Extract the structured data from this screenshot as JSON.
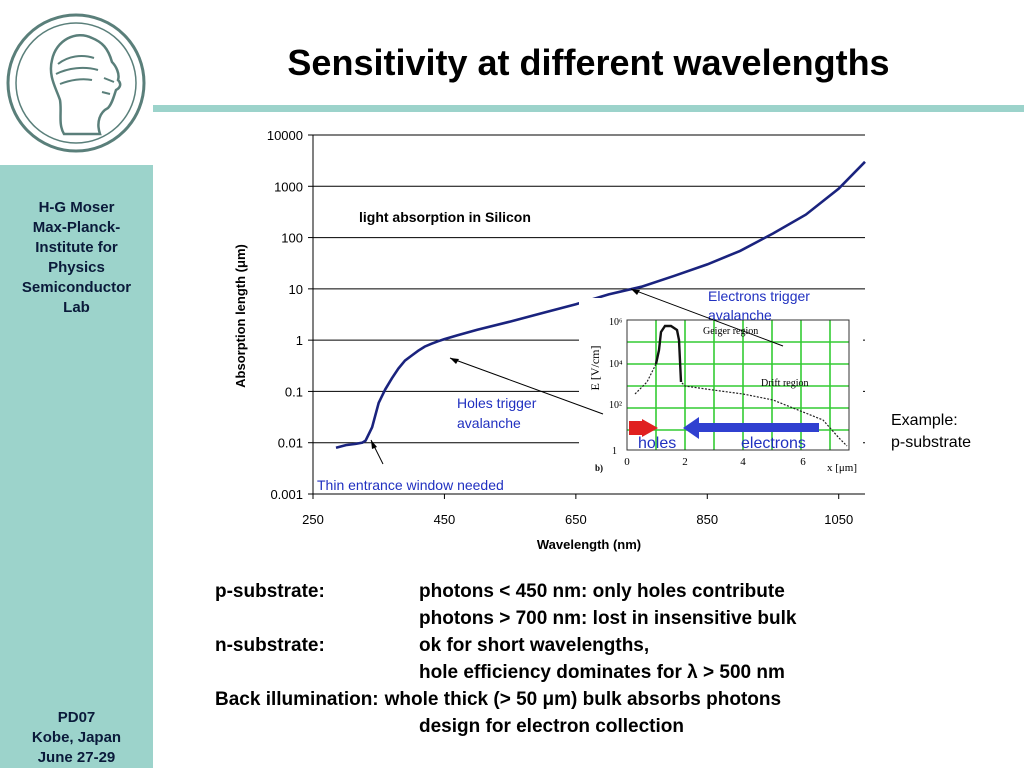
{
  "slide": {
    "title": "Sensitivity at different wavelengths",
    "sidebar": {
      "author_lines": [
        "H-G Moser",
        "Max-Planck-",
        "Institute for",
        "Physics",
        "Semiconductor",
        "Lab"
      ],
      "event_lines": [
        "PD07",
        "Kobe, Japan",
        "June 27-29"
      ]
    },
    "bullets": [
      {
        "label": "p-substrate:",
        "text": "photons < 450 nm: only holes contribute"
      },
      {
        "label": "",
        "text": "photons > 700 nm: lost in insensitive bulk"
      },
      {
        "label": "n-substrate:",
        "text": "ok for short wavelengths,"
      },
      {
        "label": "",
        "text": "hole efficiency dominates for λ > 500 nm"
      },
      {
        "label": "Back illumination:",
        "text": "whole thick (> 50 μm) bulk absorbs photons",
        "wide": true
      },
      {
        "label": "",
        "text": "design for electron collection"
      }
    ]
  },
  "chart_data": {
    "type": "line",
    "title": "light absorption in Silicon",
    "xlabel": "Wavelength (nm)",
    "ylabel": "Absorption length (μm)",
    "xlim": [
      250,
      1090
    ],
    "ylim": [
      0.001,
      10000
    ],
    "yscale": "log",
    "grid": "horizontal",
    "x_ticks": [
      250,
      450,
      650,
      850,
      1050
    ],
    "y_ticks": [
      0.001,
      0.01,
      0.1,
      1,
      10,
      100,
      1000,
      10000
    ],
    "y_tick_labels": [
      "0.001",
      "0.01",
      "0.1",
      "1",
      "10",
      "100",
      "1000",
      "10000"
    ],
    "line_color": "#1a237e",
    "series": [
      {
        "x": [
          285,
          300,
          315,
          325,
          330,
          340,
          350,
          360,
          370,
          380,
          390,
          400,
          410,
          420,
          430,
          440,
          450,
          470,
          500,
          550,
          600,
          650,
          700,
          750,
          800,
          850,
          900,
          950,
          1000,
          1050,
          1090
        ],
        "y": [
          0.008,
          0.009,
          0.0095,
          0.01,
          0.011,
          0.02,
          0.06,
          0.11,
          0.18,
          0.28,
          0.4,
          0.5,
          0.62,
          0.75,
          0.85,
          0.95,
          1.05,
          1.25,
          1.6,
          2.3,
          3.4,
          5,
          7.8,
          11,
          18,
          30,
          55,
          120,
          280,
          900,
          3000
        ]
      }
    ],
    "annotations": {
      "holes": "Holes trigger avalanche",
      "electrons": "Electrons trigger avalanche",
      "window": "Thin entrance window needed",
      "example": [
        "Example:",
        "p-substrate"
      ]
    },
    "inset": {
      "y_axis_label": "E [V/cm]",
      "y_ticks": [
        "10⁶",
        "10⁴",
        "10²",
        "1"
      ],
      "x_ticks": [
        "0",
        "2",
        "4",
        "6"
      ],
      "x_axis_label": "x [μm]",
      "panel_label": "b)",
      "region_labels": [
        "Geiger region",
        "Drift region"
      ],
      "carrier_labels": {
        "holes": "holes",
        "electrons": "electrons"
      },
      "arrow_colors": {
        "holes": "#e02020",
        "electrons": "#3040d0"
      }
    }
  }
}
